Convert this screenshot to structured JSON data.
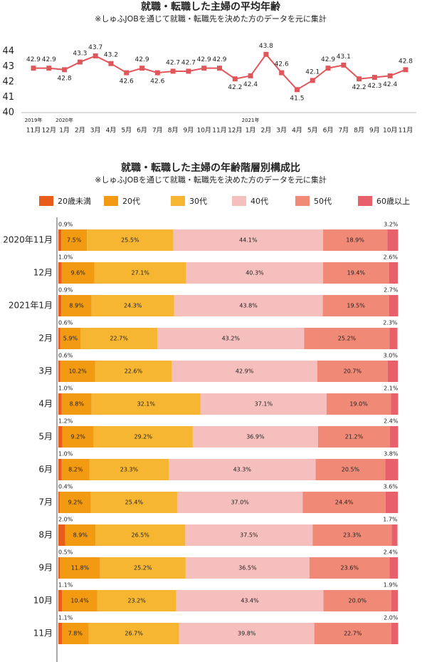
{
  "chart_data": [
    {
      "type": "line",
      "title": "就職・転職した主婦の平均年齢",
      "subtitle": "※しゅふJOBを通じて就職・転職先を決めた方のデータを元に集計",
      "categories": [
        "11月",
        "12月",
        "1月",
        "2月",
        "3月",
        "4月",
        "5月",
        "6月",
        "7月",
        "8月",
        "9月",
        "10月",
        "11月",
        "12月",
        "1月",
        "2月",
        "3月",
        "4月",
        "5月",
        "6月",
        "7月",
        "8月",
        "9月",
        "10月",
        "11月"
      ],
      "years": [
        "2019年",
        null,
        "2020年",
        null,
        null,
        null,
        null,
        null,
        null,
        null,
        null,
        null,
        null,
        null,
        "2021年",
        null,
        null,
        null,
        null,
        null,
        null,
        null,
        null,
        null,
        null
      ],
      "values": [
        42.9,
        42.9,
        42.8,
        43.3,
        43.7,
        43.2,
        42.6,
        42.9,
        42.6,
        42.7,
        42.7,
        42.9,
        42.9,
        42.2,
        42.4,
        43.8,
        42.6,
        41.5,
        42.1,
        42.9,
        43.1,
        42.2,
        42.3,
        42.4,
        42.8
      ],
      "color": "#e0575b",
      "ylim": [
        40,
        44
      ],
      "yticks": [
        40,
        41,
        42,
        43,
        44
      ],
      "grid": false
    },
    {
      "type": "bar",
      "orientation": "horizontal",
      "stacked": true,
      "title": "就職・転職した主婦の年齢階層別構成比",
      "subtitle": "※しゅふJOBを通じて就職・転職先を決めた方のデータを元に集計",
      "categories": [
        "2020年11月",
        "12月",
        "2021年1月",
        "2月",
        "3月",
        "4月",
        "5月",
        "6月",
        "7月",
        "8月",
        "9月",
        "10月",
        "11月"
      ],
      "xlim": [
        0,
        100
      ],
      "series": [
        {
          "name": "20歳未満",
          "color": "#e85d1c",
          "values": [
            0.9,
            1.0,
            0.9,
            0.6,
            0.6,
            1.0,
            1.2,
            1.0,
            0.4,
            2.0,
            0.5,
            1.1,
            1.1
          ],
          "value_labels": [
            "0.9%",
            "1.0%",
            "0.9%",
            "0.6%",
            "0.6%",
            "1.0%",
            "1.2%",
            "1.0%",
            "0.4%",
            "2.0%",
            "0.5%",
            "1.1%",
            "1.1%"
          ]
        },
        {
          "name": "20代",
          "color": "#f29a12",
          "values": [
            7.5,
            9.6,
            8.9,
            5.9,
            10.2,
            8.8,
            9.2,
            8.2,
            9.2,
            8.9,
            11.8,
            10.4,
            7.8
          ],
          "value_labels": [
            "7.5%",
            "9.6%",
            "8.9%",
            "5.9%",
            "10.2%",
            "8.8%",
            "9.2%",
            "8.2%",
            "9.2%",
            "8.9%",
            "11.8%",
            "10.4%",
            "7.8%"
          ]
        },
        {
          "name": "30代",
          "color": "#f6b631",
          "values": [
            25.5,
            27.1,
            24.3,
            22.7,
            22.6,
            32.1,
            29.2,
            23.3,
            25.4,
            26.5,
            25.2,
            23.2,
            26.7
          ],
          "value_labels": [
            "25.5%",
            "27.1%",
            "24.3%",
            "22.7%",
            "22.6%",
            "32.1%",
            "29.2%",
            "23.3%",
            "25.4%",
            "26.5%",
            "25.2%",
            "23.2%",
            "26.7%"
          ]
        },
        {
          "name": "40代",
          "color": "#f5bfbd",
          "values": [
            44.1,
            40.3,
            43.8,
            43.2,
            42.9,
            37.1,
            36.9,
            43.3,
            37.0,
            37.5,
            36.5,
            43.4,
            39.8
          ],
          "value_labels": [
            "44.1%",
            "40.3%",
            "43.8%",
            "43.2%",
            "42.9%",
            "37.1%",
            "36.9%",
            "43.3%",
            "37.0%",
            "37.5%",
            "36.5%",
            "43.4%",
            "39.8%"
          ]
        },
        {
          "name": "50代",
          "color": "#f08a76",
          "values": [
            18.9,
            19.4,
            19.5,
            25.2,
            20.7,
            19.0,
            21.2,
            20.5,
            24.4,
            23.3,
            23.6,
            20.0,
            22.7
          ],
          "value_labels": [
            "18.9%",
            "19.4%",
            "19.5%",
            "25.2%",
            "20.7%",
            "19.0%",
            "21.2%",
            "20.5%",
            "24.4%",
            "23.3%",
            "23.6%",
            "20.0%",
            "22.7%"
          ]
        },
        {
          "name": "60歳以上",
          "color": "#e8606a",
          "values": [
            3.2,
            2.6,
            2.7,
            2.3,
            3.0,
            2.1,
            2.4,
            3.8,
            3.6,
            1.7,
            2.4,
            1.9,
            2.0
          ],
          "value_labels": [
            "3.2%",
            "2.6%",
            "2.7%",
            "2.3%",
            "3.0%",
            "2.1%",
            "2.4%",
            "3.8%",
            "3.6%",
            "1.7%",
            "2.4%",
            "1.9%",
            "2.0%"
          ]
        }
      ]
    }
  ]
}
